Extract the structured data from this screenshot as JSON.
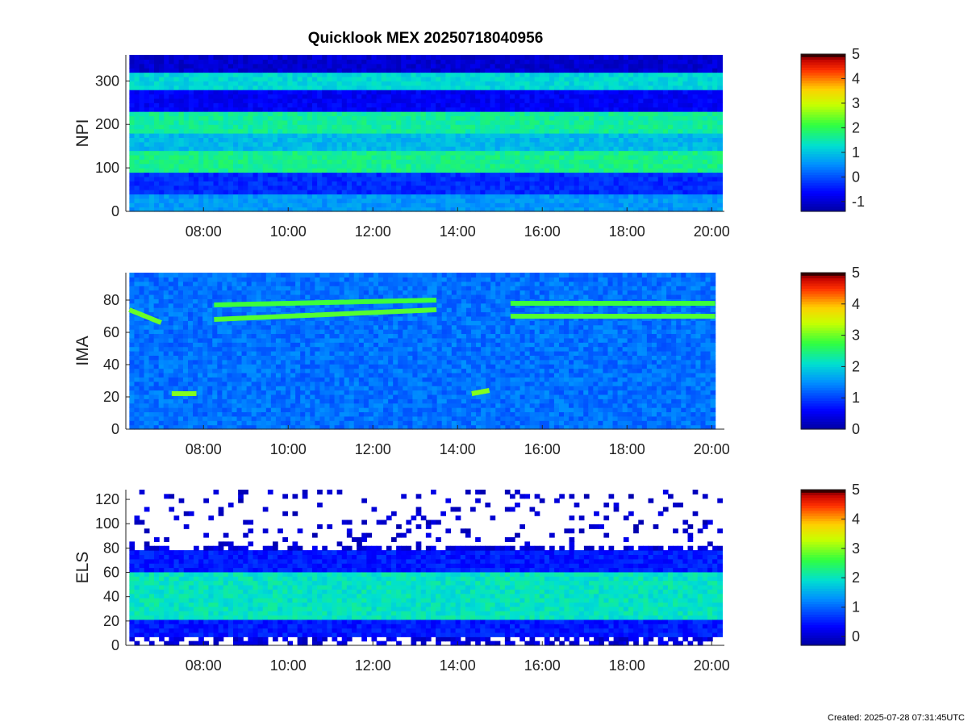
{
  "figure": {
    "title": "Quicklook MEX 20250718040956",
    "footer": "Created: 2025-07-28 07:31:45UTC"
  },
  "chart_data": [
    {
      "type": "heatmap",
      "ylabel": "NPI",
      "x_range": [
        "06:15",
        "20:15"
      ],
      "x_ticks": [
        "08:00",
        "10:00",
        "12:00",
        "14:00",
        "16:00",
        "18:00",
        "20:00"
      ],
      "ylim": [
        0,
        360
      ],
      "y_ticks": [
        0,
        100,
        200,
        300
      ],
      "colorbar": {
        "range": [
          -1.4,
          5
        ],
        "ticks": [
          -1,
          0,
          1,
          2,
          3,
          4,
          5
        ]
      },
      "bands": [
        {
          "y": [
            0,
            45
          ],
          "level": 0.6
        },
        {
          "y": [
            45,
            90
          ],
          "level": -0.3
        },
        {
          "y": [
            90,
            140
          ],
          "level": 1.7
        },
        {
          "y": [
            140,
            185
          ],
          "level": 0.9
        },
        {
          "y": [
            185,
            230
          ],
          "level": 1.6
        },
        {
          "y": [
            230,
            280
          ],
          "level": -0.7
        },
        {
          "y": [
            280,
            325
          ],
          "level": 1.2
        },
        {
          "y": [
            325,
            360
          ],
          "level": -1.0
        }
      ]
    },
    {
      "type": "heatmap",
      "ylabel": "IMA",
      "x_range": [
        "06:15",
        "20:05"
      ],
      "x_ticks": [
        "08:00",
        "10:00",
        "12:00",
        "14:00",
        "16:00",
        "18:00",
        "20:00"
      ],
      "ylim": [
        0,
        97
      ],
      "y_ticks": [
        0,
        20,
        40,
        60,
        80
      ],
      "colorbar": {
        "range": [
          0,
          5
        ],
        "ticks": [
          0,
          1,
          2,
          3,
          4,
          5
        ]
      },
      "background_level": 1.3,
      "traces": [
        {
          "t": [
            "06:15",
            "07:00"
          ],
          "y": [
            74,
            66
          ],
          "level": 3.0
        },
        {
          "t": [
            "07:15",
            "07:50"
          ],
          "y": [
            22,
            22
          ],
          "level": 3.1
        },
        {
          "t": [
            "08:15",
            "13:30"
          ],
          "y": [
            68,
            74
          ],
          "level": 2.9
        },
        {
          "t": [
            "08:15",
            "13:30"
          ],
          "y": [
            77,
            80
          ],
          "level": 2.8
        },
        {
          "t": [
            "14:20",
            "14:45"
          ],
          "y": [
            22,
            24
          ],
          "level": 3.1
        },
        {
          "t": [
            "15:15",
            "20:05"
          ],
          "y": [
            70,
            70
          ],
          "level": 2.9
        },
        {
          "t": [
            "15:15",
            "20:05"
          ],
          "y": [
            78,
            78
          ],
          "level": 2.8
        }
      ]
    },
    {
      "type": "heatmap",
      "ylabel": "ELS",
      "x_range": [
        "06:15",
        "20:15"
      ],
      "x_ticks": [
        "08:00",
        "10:00",
        "12:00",
        "14:00",
        "16:00",
        "18:00",
        "20:00"
      ],
      "ylim": [
        0,
        128
      ],
      "y_ticks": [
        0,
        20,
        40,
        60,
        80,
        100,
        120
      ],
      "colorbar": {
        "range": [
          -0.3,
          5
        ],
        "ticks": [
          0,
          1,
          2,
          3,
          4,
          5
        ]
      },
      "core_band": {
        "y": [
          20,
          60
        ],
        "level": 2.0
      },
      "outer_band": {
        "y": [
          8,
          78
        ],
        "level": 0.5
      },
      "sparse_above": 80
    }
  ]
}
